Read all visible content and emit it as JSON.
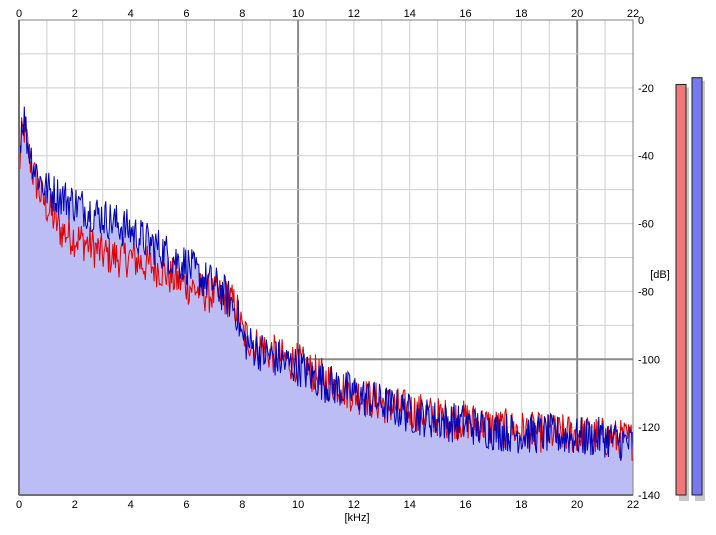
{
  "chart_data": {
    "type": "area",
    "title": "",
    "xlabel": "[kHz]",
    "ylabel": "[dB]",
    "xlim": [
      0,
      22
    ],
    "ylim": [
      -140,
      0
    ],
    "x_ticks": [
      "0",
      "2",
      "4",
      "6",
      "8",
      "10",
      "12",
      "14",
      "16",
      "18",
      "20",
      "22"
    ],
    "y_ticks": [
      "0",
      "-20",
      "-40",
      "-60",
      "-80",
      "-100",
      "-120",
      "-140"
    ],
    "grid": true,
    "series": [
      {
        "color": "#e00000",
        "envelope_x": [
          0.0,
          0.1,
          0.2,
          0.3,
          0.5,
          0.8,
          1.0,
          1.5,
          2.0,
          2.5,
          3.0,
          3.5,
          4.0,
          4.5,
          5.0,
          5.5,
          6.0,
          6.5,
          7.0,
          7.5,
          7.8,
          8.0,
          8.5,
          9.0,
          9.5,
          10.0,
          10.5,
          11.0,
          12.0,
          13.0,
          14.0,
          15.0,
          16.0,
          17.0,
          18.0,
          19.0,
          20.0,
          21.0,
          22.0
        ],
        "envelope_y": [
          -45,
          -34,
          -32,
          -37,
          -45,
          -52,
          -55,
          -62,
          -64,
          -66,
          -69,
          -70,
          -70,
          -72,
          -73,
          -76,
          -78,
          -80,
          -81,
          -82,
          -85,
          -92,
          -96,
          -98,
          -100,
          -101,
          -104,
          -106,
          -110,
          -113,
          -115,
          -117,
          -118,
          -120,
          -121,
          -122,
          -122,
          -123,
          -124
        ]
      },
      {
        "color": "#0000b4",
        "envelope_x": [
          0.0,
          0.1,
          0.2,
          0.3,
          0.5,
          0.8,
          1.0,
          1.5,
          2.0,
          2.5,
          3.0,
          3.5,
          4.0,
          4.5,
          5.0,
          5.5,
          6.0,
          6.5,
          7.0,
          7.5,
          7.8,
          8.0,
          8.5,
          9.0,
          9.5,
          10.0,
          10.5,
          11.0,
          12.0,
          13.0,
          14.0,
          15.0,
          16.0,
          17.0,
          18.0,
          19.0,
          20.0,
          21.0,
          22.0
        ],
        "envelope_y": [
          -40,
          -30,
          -29,
          -36,
          -42,
          -48,
          -50,
          -52,
          -54,
          -56,
          -58,
          -60,
          -62,
          -65,
          -67,
          -70,
          -72,
          -76,
          -78,
          -82,
          -86,
          -94,
          -97,
          -99,
          -101,
          -102,
          -105,
          -107,
          -110,
          -113,
          -116,
          -118,
          -119,
          -121,
          -122,
          -122,
          -123,
          -123,
          -125
        ]
      }
    ],
    "level_bars": [
      {
        "color": "#f07878",
        "value": -19
      },
      {
        "color": "#7878f0",
        "value": -17
      }
    ]
  }
}
